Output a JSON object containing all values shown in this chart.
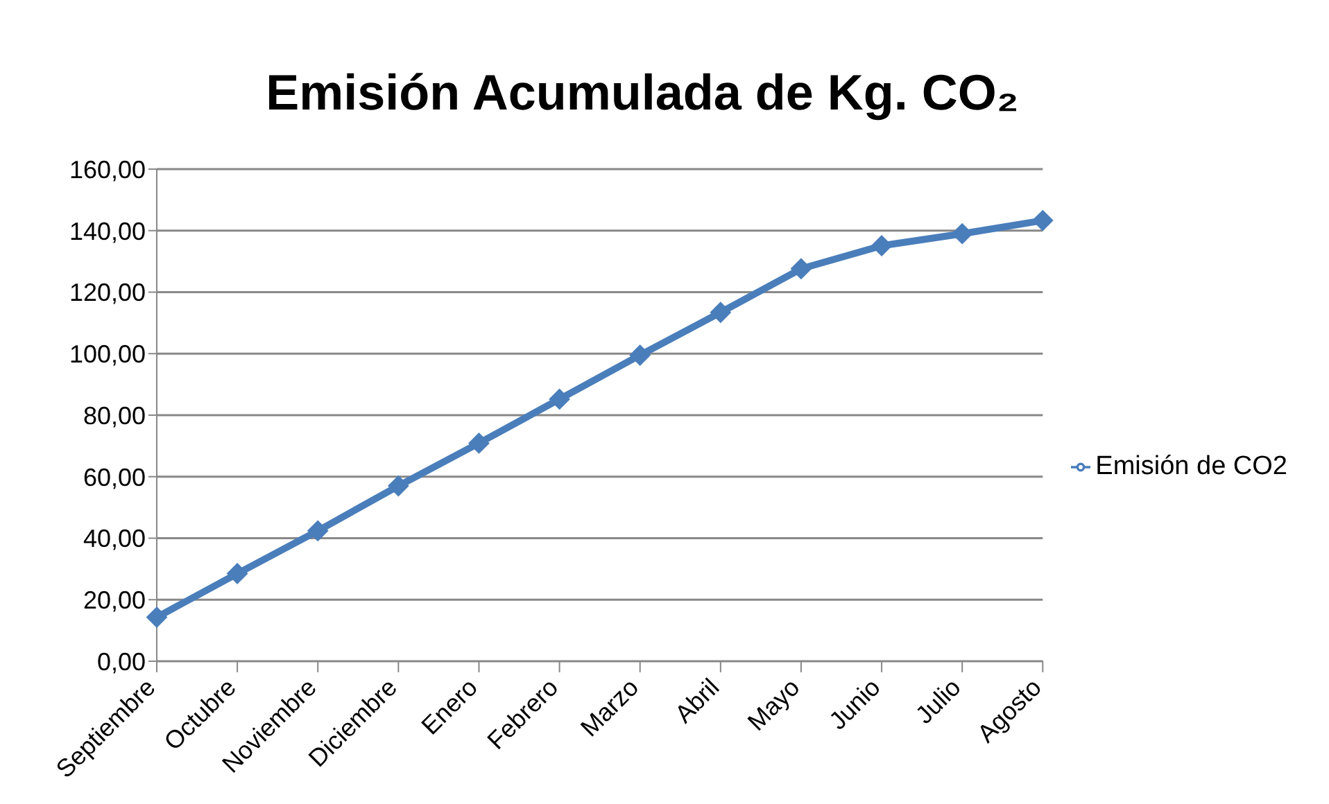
{
  "chart_data": {
    "type": "line",
    "title": "Emisión Acumulada de Kg.  CO₂",
    "categories": [
      "Septiembre",
      "Octubre",
      "Noviembre",
      "Diciembre",
      "Enero",
      "Febrero",
      "Marzo",
      "Abril",
      "Mayo",
      "Junio",
      "Julio",
      "Agosto"
    ],
    "series": [
      {
        "name": "Emisión de CO2",
        "color": "#4a7ebb",
        "values": [
          14.3,
          28.5,
          42.4,
          57.0,
          70.9,
          85.2,
          99.5,
          113.4,
          127.6,
          135.1,
          139.0,
          143.3
        ]
      }
    ],
    "ylim": [
      0,
      160
    ],
    "yticks": [
      {
        "value": 0,
        "label": "0,00"
      },
      {
        "value": 20,
        "label": "20,00"
      },
      {
        "value": 40,
        "label": "40,00"
      },
      {
        "value": 60,
        "label": "60,00"
      },
      {
        "value": 80,
        "label": "80,00"
      },
      {
        "value": 100,
        "label": "100,00"
      },
      {
        "value": 120,
        "label": "120,00"
      },
      {
        "value": 140,
        "label": "140,00"
      },
      {
        "value": 160,
        "label": "160,00"
      }
    ],
    "grid": "y",
    "legend": "right",
    "marker": "diamond",
    "line_style": "solid"
  }
}
